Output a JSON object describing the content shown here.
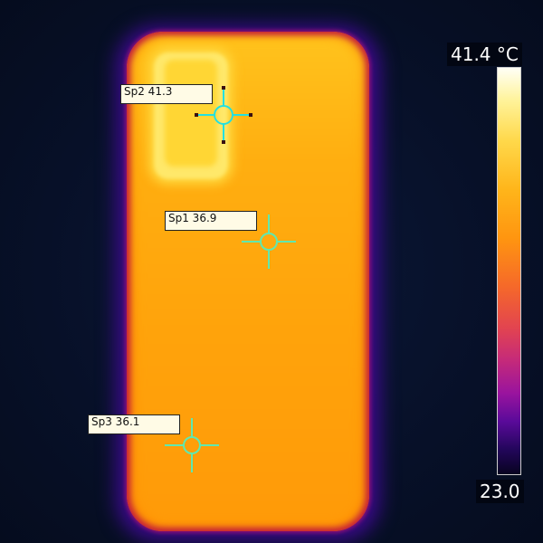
{
  "image": {
    "type": "thermal-image",
    "subject": "smartphone back"
  },
  "colors": {
    "background": "#07122a",
    "hot": "#fffff6",
    "cold": "#080320",
    "marker_sp2": "#22e0e0",
    "marker_other": "#5fe8b0"
  },
  "spots": [
    {
      "label": "Sp1 36.9"
    },
    {
      "label": "Sp2 41.3"
    },
    {
      "label": "Sp3 36.1"
    }
  ],
  "scale": {
    "max": "41.4 °C",
    "min": "23.0"
  }
}
